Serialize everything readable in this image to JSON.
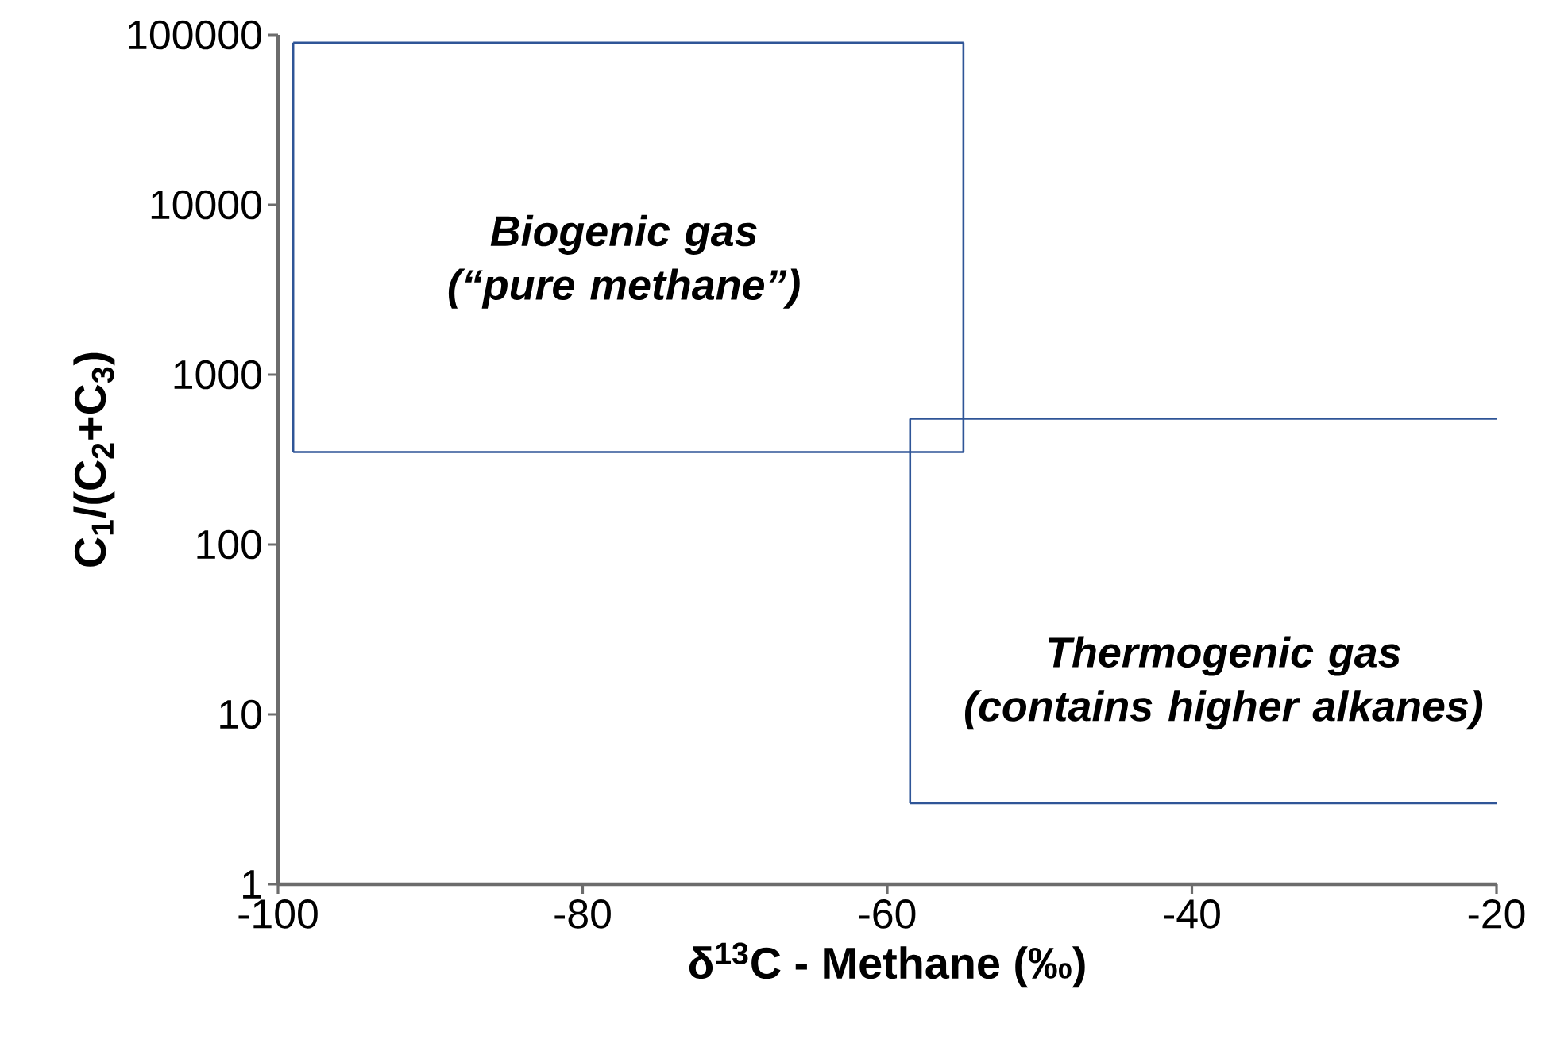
{
  "chart_data": {
    "type": "line",
    "xlabel": "δ$^{13}$C - Methane (‰)",
    "ylabel": "C$_{1}$/(C$_{2}$+C$_{3}$)",
    "log": "y",
    "xlim": [
      -100,
      -20
    ],
    "xticks": [
      -100,
      -80,
      -60,
      -40,
      -20
    ],
    "ylim": [
      1,
      100000
    ],
    "yticks": [
      1,
      10,
      100,
      1000,
      10000,
      100000
    ],
    "series": [
      {
        "color": "#2f5597",
        "x": [
          -99,
          -55
        ],
        "values": [
          90000,
          90000
        ]
      },
      {
        "color": "#2f5597",
        "x": [
          -99,
          -55
        ],
        "values": [
          350,
          350
        ]
      },
      {
        "color": "#2f5597",
        "x": [
          -99,
          -99
        ],
        "values": [
          350,
          90000
        ]
      },
      {
        "color": "#2f5597",
        "x": [
          -55,
          -55
        ],
        "values": [
          350,
          90000
        ]
      },
      {
        "color": "#2f5597",
        "x": [
          -58.5,
          -20
        ],
        "values": [
          550,
          550
        ]
      },
      {
        "color": "#2f5597",
        "x": [
          -58.5,
          -20
        ],
        "values": [
          3,
          3
        ]
      },
      {
        "color": "#2f5597",
        "x": [
          -58.5,
          -58.5
        ],
        "values": [
          3,
          550
        ]
      }
    ],
    "annotations": [
      "Biogenic gas (“pure methane”)",
      "Thermogenic gas (contains higher alkanes)"
    ]
  }
}
